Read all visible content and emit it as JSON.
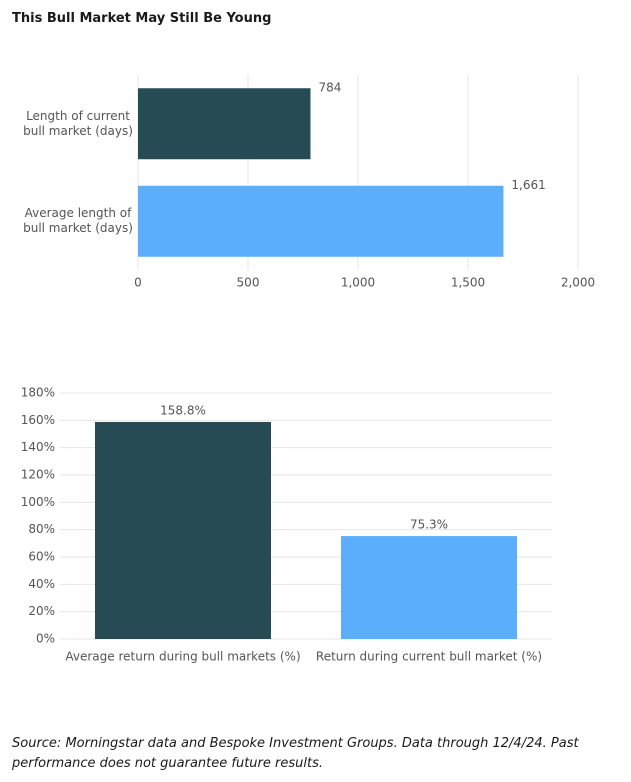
{
  "title": "This Bull Market May Still Be Young",
  "chart_data": [
    {
      "type": "bar",
      "orientation": "horizontal",
      "categories": [
        "Length of current bull market (days)",
        "Average length of bull market (days)"
      ],
      "values": [
        784,
        1661
      ],
      "value_labels": [
        "784",
        "1,661"
      ],
      "colors": [
        "#264b55",
        "#5aaefc"
      ],
      "xlim": [
        0,
        2000
      ],
      "xticks": [
        0,
        500,
        {
          "value": 1000,
          "label": "1,000"
        },
        {
          "value": 1500,
          "label": "1,500"
        },
        {
          "value": 2000,
          "label": "2,000"
        }
      ],
      "grid": true
    },
    {
      "type": "bar",
      "orientation": "vertical",
      "categories": [
        "Average return during bull markets (%)",
        "Return during current bull market (%)"
      ],
      "values": [
        158.8,
        75.3
      ],
      "value_labels": [
        "158.8%",
        "75.3%"
      ],
      "colors": [
        "#264b55",
        "#5aaefc"
      ],
      "ylim": [
        0,
        180
      ],
      "yticks": [
        {
          "value": 0,
          "label": "0%"
        },
        {
          "value": 20,
          "label": "20%"
        },
        {
          "value": 40,
          "label": "40%"
        },
        {
          "value": 60,
          "label": "60%"
        },
        {
          "value": 80,
          "label": "80%"
        },
        {
          "value": 100,
          "label": "100%"
        },
        {
          "value": 120,
          "label": "120%"
        },
        {
          "value": 140,
          "label": "140%"
        },
        {
          "value": 160,
          "label": "160%"
        },
        {
          "value": 180,
          "label": "180%"
        }
      ],
      "grid": true
    }
  ],
  "source": "Source: Morningstar data and Bespoke Investment Groups. Data through 12/4/24. Past performance does not guarantee future results."
}
